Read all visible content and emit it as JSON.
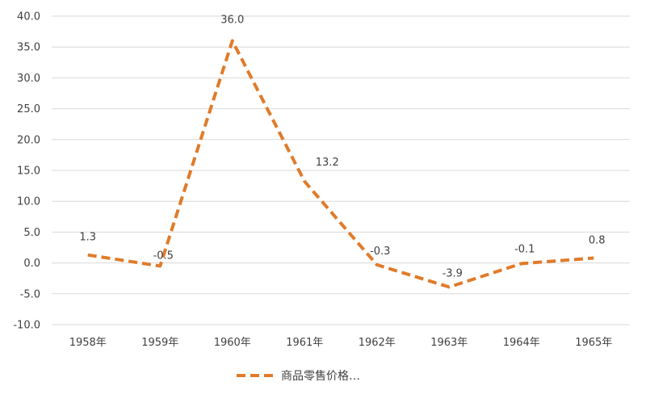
{
  "chart_data": {
    "type": "line",
    "categories": [
      "1958年",
      "1959年",
      "1960年",
      "1961年",
      "1962年",
      "1963年",
      "1964年",
      "1965年"
    ],
    "series": [
      {
        "name": "商品零售价格…",
        "values": [
          1.3,
          -0.5,
          36.0,
          13.2,
          -0.3,
          -3.9,
          -0.1,
          0.8
        ],
        "labels": [
          "1.3",
          "-0.5",
          "36.0",
          "13.2",
          "-0.3",
          "-3.9",
          "-0.1",
          "0.8"
        ],
        "color": "#E07B2A",
        "line_style": "dashed"
      }
    ],
    "ylim": [
      -10.0,
      40.0
    ],
    "yticks": [
      40.0,
      35.0,
      30.0,
      25.0,
      20.0,
      15.0,
      10.0,
      5.0,
      0.0,
      -5.0,
      -10.0
    ],
    "ytick_labels": [
      "40.0",
      "35.0",
      "30.0",
      "25.0",
      "20.0",
      "15.0",
      "10.0",
      "5.0",
      "0.0",
      "-5.0",
      "-10.0"
    ],
    "grid": true,
    "grid_color": "#d9d9d9",
    "legend_position": "bottom"
  }
}
